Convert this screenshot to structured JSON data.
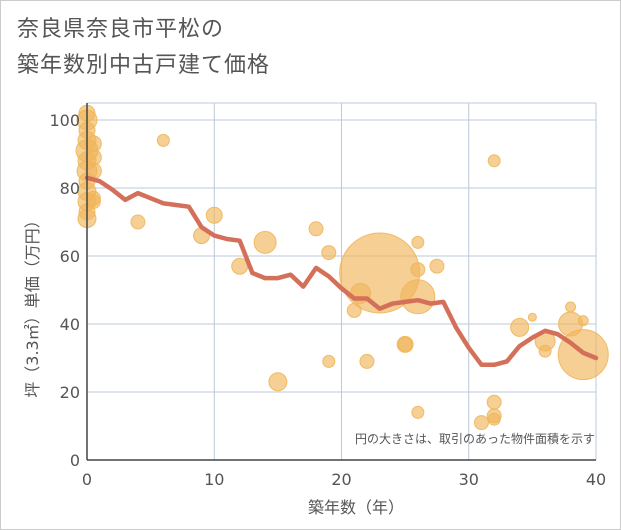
{
  "title_line1": "奈良県奈良市平松の",
  "title_line2": "築年数別中古戸建て価格",
  "chart_data": {
    "type": "scatter",
    "title": "奈良県奈良市平松の築年数別中古戸建て価格",
    "xlabel": "築年数（年）",
    "ylabel": "坪（3.3㎡）単価（万円）",
    "xlim": [
      0,
      40
    ],
    "ylim": [
      0,
      105
    ],
    "xticks": [
      0,
      10,
      20,
      30,
      40
    ],
    "yticks": [
      0,
      20,
      40,
      60,
      80,
      100
    ],
    "grid": true,
    "note": "円の大きさは、取引のあった物件面積を示す",
    "colors": {
      "bubble": "#f0b65a",
      "line": "#d4705a",
      "grid": "#bcc9d8"
    },
    "scatter_points": [
      {
        "x": 0,
        "y": 102,
        "s": 8
      },
      {
        "x": 0,
        "y": 100,
        "s": 10
      },
      {
        "x": 0,
        "y": 97,
        "s": 8
      },
      {
        "x": 0,
        "y": 94,
        "s": 9
      },
      {
        "x": 0,
        "y": 91,
        "s": 11
      },
      {
        "x": 0,
        "y": 88,
        "s": 9
      },
      {
        "x": 0,
        "y": 85,
        "s": 10
      },
      {
        "x": 0,
        "y": 82,
        "s": 8
      },
      {
        "x": 0,
        "y": 79,
        "s": 9
      },
      {
        "x": 0,
        "y": 76,
        "s": 9
      },
      {
        "x": 0,
        "y": 73,
        "s": 8
      },
      {
        "x": 0,
        "y": 71,
        "s": 9
      },
      {
        "x": 0.5,
        "y": 93,
        "s": 8
      },
      {
        "x": 0.5,
        "y": 89,
        "s": 8
      },
      {
        "x": 0.5,
        "y": 85,
        "s": 8
      },
      {
        "x": 0.5,
        "y": 77,
        "s": 7
      },
      {
        "x": 0.5,
        "y": 76,
        "s": 7
      },
      {
        "x": 4,
        "y": 70,
        "s": 7
      },
      {
        "x": 6,
        "y": 94,
        "s": 6
      },
      {
        "x": 9,
        "y": 66,
        "s": 8
      },
      {
        "x": 10,
        "y": 72,
        "s": 8
      },
      {
        "x": 12,
        "y": 57,
        "s": 8
      },
      {
        "x": 14,
        "y": 64,
        "s": 11
      },
      {
        "x": 15,
        "y": 23,
        "s": 9
      },
      {
        "x": 18,
        "y": 68,
        "s": 7
      },
      {
        "x": 19,
        "y": 61,
        "s": 7
      },
      {
        "x": 19,
        "y": 29,
        "s": 6
      },
      {
        "x": 21,
        "y": 44,
        "s": 7
      },
      {
        "x": 21.5,
        "y": 49,
        "s": 10
      },
      {
        "x": 22,
        "y": 29,
        "s": 7
      },
      {
        "x": 23,
        "y": 55,
        "s": 40
      },
      {
        "x": 25,
        "y": 34,
        "s": 7
      },
      {
        "x": 25,
        "y": 34,
        "s": 8
      },
      {
        "x": 26,
        "y": 64,
        "s": 6
      },
      {
        "x": 26,
        "y": 56,
        "s": 7
      },
      {
        "x": 26,
        "y": 48,
        "s": 17
      },
      {
        "x": 26,
        "y": 14,
        "s": 6
      },
      {
        "x": 27.5,
        "y": 57,
        "s": 7
      },
      {
        "x": 31,
        "y": 11,
        "s": 7
      },
      {
        "x": 32,
        "y": 88,
        "s": 6
      },
      {
        "x": 32,
        "y": 17,
        "s": 7
      },
      {
        "x": 32,
        "y": 13,
        "s": 7
      },
      {
        "x": 32,
        "y": 12,
        "s": 6
      },
      {
        "x": 34,
        "y": 39,
        "s": 9
      },
      {
        "x": 35,
        "y": 42,
        "s": 4
      },
      {
        "x": 36,
        "y": 35,
        "s": 10
      },
      {
        "x": 36,
        "y": 32,
        "s": 6
      },
      {
        "x": 38,
        "y": 45,
        "s": 5
      },
      {
        "x": 38,
        "y": 40,
        "s": 12
      },
      {
        "x": 39,
        "y": 41,
        "s": 5
      },
      {
        "x": 39,
        "y": 31,
        "s": 25
      }
    ],
    "trend_x": [
      0,
      1,
      2,
      3,
      4,
      5,
      6,
      7,
      8,
      9,
      10,
      11,
      12,
      13,
      14,
      15,
      16,
      17,
      18,
      19,
      20,
      21,
      22,
      23,
      24,
      25,
      26,
      27,
      28,
      29,
      30,
      31,
      32,
      33,
      34,
      35,
      36,
      37,
      38,
      39,
      40
    ],
    "trend_y": [
      83,
      82,
      79.5,
      76.5,
      78.5,
      77,
      75.5,
      75,
      74.5,
      68.5,
      66,
      65,
      64.5,
      55,
      53.5,
      53.5,
      54.5,
      51,
      56.5,
      54,
      50.5,
      47.5,
      47.5,
      44.5,
      46,
      46.5,
      47,
      46,
      46.5,
      39,
      33,
      28,
      28,
      29,
      33.5,
      36,
      38,
      37,
      34.5,
      31.5,
      30
    ]
  }
}
